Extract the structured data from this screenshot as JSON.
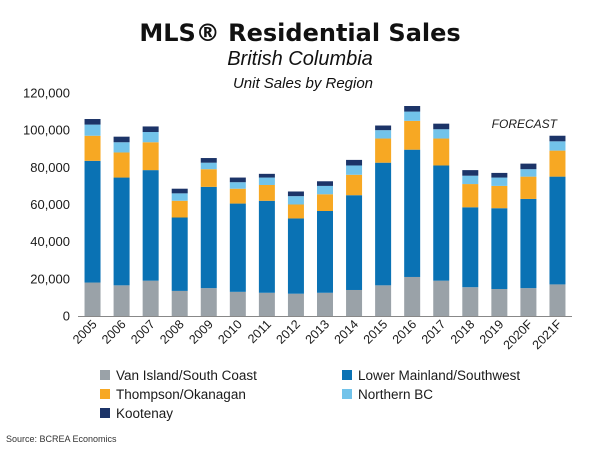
{
  "colors": {
    "van_island": "#9aa2a8",
    "lower_mainland": "#0a72b4",
    "thompson": "#f7a823",
    "northern_bc": "#72c3ea",
    "kootenay": "#1c3468",
    "axis": "#888888"
  },
  "chart_data": {
    "type": "bar",
    "stacked": true,
    "title": "MLS® Residential Sales",
    "subtitle": "British Columbia",
    "subtitle2": "Unit Sales by Region",
    "annotation": "FORECAST",
    "source": "Source: BCREA Economics",
    "ylim": [
      0,
      120000
    ],
    "yticks": [
      0,
      20000,
      40000,
      60000,
      80000,
      100000,
      120000
    ],
    "ytick_labels": [
      "0",
      "20,000",
      "40,000",
      "60,000",
      "80,000",
      "100,000",
      "120,000"
    ],
    "grid": false,
    "legend_position": "bottom",
    "categories": [
      "2005",
      "2006",
      "2007",
      "2008",
      "2009",
      "2010",
      "2011",
      "2012",
      "2013",
      "2014",
      "2015",
      "2016",
      "2017",
      "2018",
      "2019",
      "2020F",
      "2021F"
    ],
    "series": [
      {
        "name": "Van Island/South Coast",
        "color_key": "van_island",
        "values": [
          18000,
          16500,
          19000,
          13500,
          15000,
          13000,
          12500,
          12000,
          12500,
          14000,
          16500,
          21000,
          19000,
          15500,
          14500,
          15000,
          17000
        ]
      },
      {
        "name": "Lower Mainland/Southwest",
        "color_key": "lower_mainland",
        "values": [
          65500,
          58000,
          59500,
          39500,
          54500,
          47500,
          49500,
          40500,
          44000,
          51000,
          66000,
          68500,
          62000,
          43000,
          43500,
          48000,
          58000
        ]
      },
      {
        "name": "Thompson/Okanagan",
        "color_key": "thompson",
        "values": [
          13500,
          13500,
          15000,
          9000,
          9500,
          8000,
          8500,
          7500,
          9000,
          11000,
          13000,
          15500,
          14500,
          12500,
          12000,
          12000,
          14000
        ]
      },
      {
        "name": "Northern BC",
        "color_key": "northern_bc",
        "values": [
          6000,
          5500,
          5500,
          4000,
          3500,
          3500,
          4000,
          4500,
          4500,
          5000,
          4500,
          5000,
          5000,
          4500,
          4500,
          4000,
          5000
        ]
      },
      {
        "name": "Kootenay",
        "color_key": "kootenay",
        "values": [
          3000,
          3000,
          3000,
          2500,
          2500,
          2500,
          2000,
          2500,
          2500,
          3000,
          2500,
          3000,
          3000,
          3000,
          2500,
          3000,
          3000
        ]
      }
    ]
  }
}
